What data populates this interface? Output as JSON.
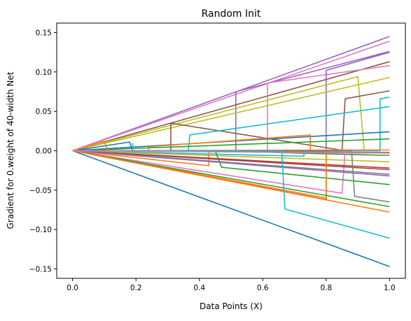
{
  "chart_data": {
    "type": "line",
    "title": "Random Init",
    "xlabel": "Data Points (X)",
    "ylabel": "Gradient for 0.weight of 40-width Net",
    "xlim": [
      -0.05,
      1.05
    ],
    "ylim": [
      -0.162,
      0.162
    ],
    "x_ticks": [
      0.0,
      0.2,
      0.4,
      0.6,
      0.8,
      1.0
    ],
    "x_tick_labels": [
      "0.0",
      "0.2",
      "0.4",
      "0.6",
      "0.8",
      "1.0"
    ],
    "y_ticks": [
      0.15,
      0.1,
      0.05,
      0.0,
      -0.05,
      -0.1,
      -0.15
    ],
    "y_tick_labels": [
      "0.15",
      "0.10",
      "0.05",
      "0.00",
      "−0.05",
      "−0.10",
      "−0.15"
    ],
    "grid": false,
    "legend": "none",
    "palette": [
      "#1f77b4",
      "#ff7f0e",
      "#2ca02c",
      "#d62728",
      "#9467bd",
      "#8c564b",
      "#e377c2",
      "#7f7f7f",
      "#bcbd22",
      "#17becf"
    ],
    "series": [
      {
        "color": "#1f77b4",
        "points": [
          [
            0,
            0
          ],
          [
            1.0,
            -0.147
          ]
        ]
      },
      {
        "color": "#9467bd",
        "points": [
          [
            0,
            0
          ],
          [
            1.0,
            0.145
          ]
        ]
      },
      {
        "color": "#e377c2",
        "points": [
          [
            0,
            0
          ],
          [
            1.0,
            0.139
          ]
        ]
      },
      {
        "color": "#9467bd",
        "points": [
          [
            0,
            0
          ],
          [
            0.515,
            0.0
          ],
          [
            0.515,
            0.075
          ],
          [
            1.0,
            0.126
          ]
        ]
      },
      {
        "color": "#8c564b",
        "points": [
          [
            0,
            0
          ],
          [
            1.0,
            0.113
          ]
        ]
      },
      {
        "color": "#e377c2",
        "points": [
          [
            0,
            0
          ],
          [
            0.615,
            0.0
          ],
          [
            0.615,
            0.086
          ],
          [
            1.0,
            0.108
          ]
        ]
      },
      {
        "color": "#9467bd",
        "points": [
          [
            0,
            0
          ],
          [
            0.8,
            0.0
          ],
          [
            0.8,
            0.102
          ],
          [
            1.0,
            0.125
          ]
        ]
      },
      {
        "color": "#bcbd22",
        "points": [
          [
            0,
            0
          ],
          [
            1.0,
            0.093
          ]
        ]
      },
      {
        "color": "#bcbd22",
        "points": [
          [
            0,
            0
          ],
          [
            0.9,
            0.094
          ],
          [
            0.92,
            0.0
          ]
        ]
      },
      {
        "color": "#8c564b",
        "points": [
          [
            0,
            0
          ],
          [
            0.31,
            0.0
          ],
          [
            0.31,
            0.035
          ],
          [
            0.86,
            0.0
          ]
        ]
      },
      {
        "color": "#8c564b",
        "points": [
          [
            0,
            0
          ],
          [
            0.85,
            0.0
          ],
          [
            0.86,
            0.066
          ],
          [
            1.0,
            0.076
          ]
        ]
      },
      {
        "color": "#17becf",
        "points": [
          [
            0,
            0
          ],
          [
            0.97,
            0.0
          ],
          [
            0.97,
            0.066
          ],
          [
            1.0,
            0.068
          ]
        ]
      },
      {
        "color": "#17becf",
        "points": [
          [
            0,
            0
          ],
          [
            0.365,
            0.0
          ],
          [
            0.37,
            0.02
          ],
          [
            1.0,
            0.056
          ]
        ]
      },
      {
        "color": "#1f77b4",
        "points": [
          [
            0,
            0
          ],
          [
            1.0,
            0.024
          ]
        ]
      },
      {
        "color": "#ff7f0e",
        "points": [
          [
            0,
            0
          ],
          [
            0.24,
            0.0
          ],
          [
            0.24,
            0.005
          ],
          [
            0.75,
            0.02
          ],
          [
            0.75,
            0.0
          ]
        ]
      },
      {
        "color": "#2ca02c",
        "points": [
          [
            0,
            0
          ],
          [
            1.0,
            0.015
          ]
        ]
      },
      {
        "color": "#1f77b4",
        "points": [
          [
            0,
            0
          ],
          [
            0.18,
            0.011
          ],
          [
            0.19,
            0.0
          ]
        ]
      },
      {
        "color": "#ff7f0e",
        "points": [
          [
            0,
            0
          ],
          [
            0.1,
            0.012
          ],
          [
            0.11,
            0.0
          ],
          [
            1.0,
            0.001
          ]
        ]
      },
      {
        "color": "#17becf",
        "points": [
          [
            0,
            0
          ],
          [
            0.19,
            0.0
          ],
          [
            0.19,
            0.01
          ]
        ]
      },
      {
        "color": "#7f7f7f",
        "points": [
          [
            0,
            0
          ],
          [
            1.0,
            -0.002
          ]
        ]
      },
      {
        "color": "#d62728",
        "points": [
          [
            0,
            0
          ],
          [
            1.0,
            -0.003
          ]
        ]
      },
      {
        "color": "#2ca02c",
        "points": [
          [
            0,
            0
          ],
          [
            0.42,
            0.0
          ],
          [
            1.0,
            -0.006
          ]
        ]
      },
      {
        "color": "#17becf",
        "points": [
          [
            0,
            0
          ],
          [
            0.73,
            -0.007
          ],
          [
            0.73,
            0.0
          ]
        ]
      },
      {
        "color": "#bcbd22",
        "points": [
          [
            0,
            0
          ],
          [
            1.0,
            -0.014
          ]
        ]
      },
      {
        "color": "#ff7f0e",
        "points": [
          [
            0,
            0
          ],
          [
            0.43,
            -0.019
          ],
          [
            0.43,
            0.0
          ]
        ]
      },
      {
        "color": "#e377c2",
        "points": [
          [
            0,
            0
          ],
          [
            0.85,
            -0.054
          ],
          [
            0.86,
            0.0
          ]
        ]
      },
      {
        "color": "#2ca02c",
        "points": [
          [
            0,
            0
          ],
          [
            0.45,
            0.0
          ],
          [
            0.47,
            -0.021
          ],
          [
            1.0,
            -0.043
          ]
        ]
      },
      {
        "color": "#d62728",
        "points": [
          [
            0,
            0
          ],
          [
            1.0,
            -0.022
          ]
        ]
      },
      {
        "color": "#8c564b",
        "points": [
          [
            0,
            0
          ],
          [
            1.0,
            -0.024
          ]
        ]
      },
      {
        "color": "#7f7f7f",
        "points": [
          [
            0,
            0
          ],
          [
            1.0,
            -0.03
          ]
        ]
      },
      {
        "color": "#9467bd",
        "points": [
          [
            0,
            0
          ],
          [
            1.0,
            -0.032
          ]
        ]
      },
      {
        "color": "#d62728",
        "points": [
          [
            0,
            0
          ],
          [
            0.8,
            -0.062
          ],
          [
            0.8,
            0.0
          ]
        ]
      },
      {
        "color": "#ff7f0e",
        "points": [
          [
            0,
            0
          ],
          [
            0.8,
            -0.06
          ],
          [
            0.8,
            0.0
          ]
        ]
      },
      {
        "color": "#2ca02c",
        "points": [
          [
            0,
            0
          ],
          [
            1.0,
            -0.071
          ]
        ]
      },
      {
        "color": "#7f7f7f",
        "points": [
          [
            0,
            0
          ],
          [
            0.88,
            0.0
          ],
          [
            0.89,
            -0.058
          ],
          [
            1.0,
            -0.065
          ]
        ]
      },
      {
        "color": "#ff7f0e",
        "points": [
          [
            0,
            0
          ],
          [
            1.0,
            -0.078
          ]
        ]
      },
      {
        "color": "#17becf",
        "points": [
          [
            0,
            0
          ],
          [
            0.66,
            0.0
          ],
          [
            0.67,
            -0.074
          ],
          [
            1.0,
            -0.111
          ]
        ]
      },
      {
        "color": "#e377c2",
        "points": [
          [
            0,
            0
          ],
          [
            1.0,
            -0.003
          ]
        ]
      }
    ]
  }
}
